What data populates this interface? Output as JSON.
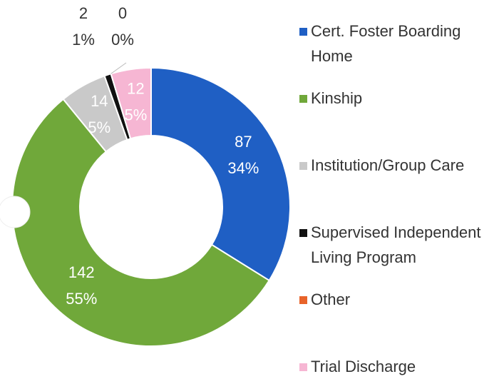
{
  "chart_data": {
    "type": "donut",
    "categories": [
      "Cert. Foster Boarding Home",
      "Kinship",
      "Institution/Group Care",
      "Supervised Independent Living Program",
      "Other",
      "Trial Discharge"
    ],
    "values": [
      87,
      142,
      14,
      2,
      0,
      12
    ],
    "value_labels": [
      "34%",
      "55%",
      "5%",
      "1%",
      "0%",
      "5%"
    ],
    "colors": [
      "#1f5fc4",
      "#70a83a",
      "#c9c9c9",
      "#111111",
      "#e8632a",
      "#f6b6d3"
    ],
    "legend": "right"
  }
}
